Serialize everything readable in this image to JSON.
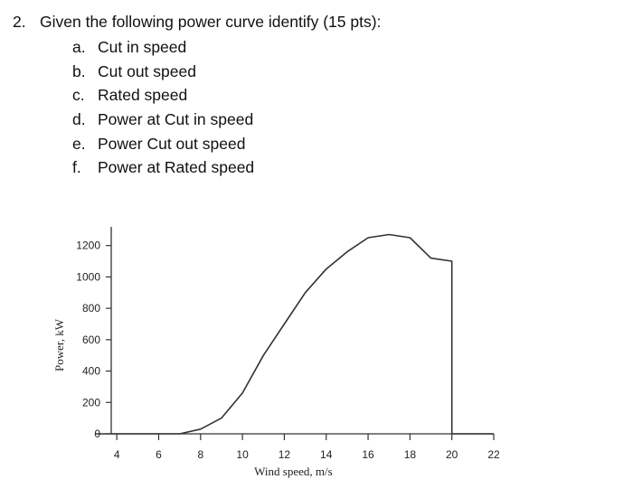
{
  "question": {
    "number": "2.",
    "text": "Given the following power curve identify (15 pts):",
    "items": [
      {
        "letter": "a.",
        "label": "Cut in speed"
      },
      {
        "letter": "b.",
        "label": "Cut out speed"
      },
      {
        "letter": "c.",
        "label": "Rated speed"
      },
      {
        "letter": "d.",
        "label": "Power at Cut in speed"
      },
      {
        "letter": "e.",
        "label": "Power Cut out speed"
      },
      {
        "letter": "f.",
        "label": "Power at Rated speed"
      }
    ]
  },
  "chart_data": {
    "type": "line",
    "xlabel": "Wind speed, m/s",
    "ylabel": "Power, kW",
    "xlim": [
      3,
      22
    ],
    "ylim": [
      0,
      1250
    ],
    "xticks": [
      4,
      6,
      8,
      10,
      12,
      14,
      16,
      18,
      20,
      22
    ],
    "yticks": [
      0,
      200,
      400,
      600,
      800,
      1000,
      1200
    ],
    "grid": false,
    "series": [
      {
        "color": "#333333",
        "x": [
          3,
          7,
          8,
          9,
          10,
          11,
          12,
          13,
          14,
          15,
          16,
          17,
          18,
          19,
          20,
          20,
          22
        ],
        "y": [
          0,
          0,
          30,
          100,
          260,
          500,
          700,
          900,
          1050,
          1160,
          1250,
          1270,
          1250,
          1120,
          1100,
          0,
          0
        ]
      }
    ]
  }
}
